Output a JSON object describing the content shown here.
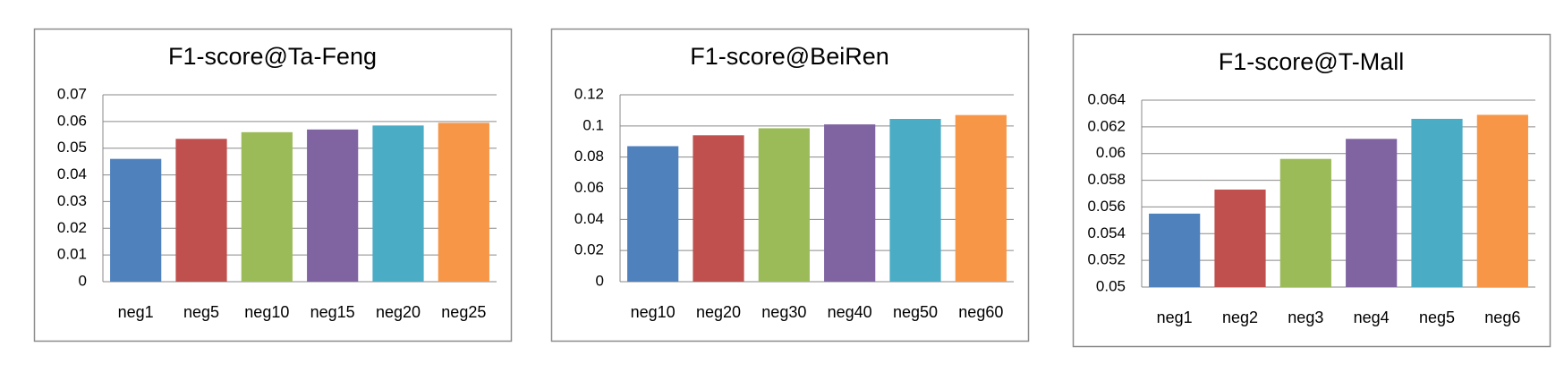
{
  "chart_data": [
    {
      "type": "bar",
      "title": "F1-score@Ta-Feng",
      "categories": [
        "neg1",
        "neg5",
        "neg10",
        "neg15",
        "neg20",
        "neg25"
      ],
      "values": [
        0.046,
        0.0535,
        0.056,
        0.057,
        0.0585,
        0.0595
      ],
      "colors": [
        "#4F81BD",
        "#C0504D",
        "#9BBB59",
        "#8064A2",
        "#4BACC6",
        "#F79646"
      ],
      "ylim": [
        0,
        0.07
      ],
      "yticks": [
        0,
        0.01,
        0.02,
        0.03,
        0.04,
        0.05,
        0.06,
        0.07
      ],
      "grid": true
    },
    {
      "type": "bar",
      "title": "F1-score@BeiRen",
      "categories": [
        "neg10",
        "neg20",
        "neg30",
        "neg40",
        "neg50",
        "neg60"
      ],
      "values": [
        0.087,
        0.094,
        0.0985,
        0.101,
        0.1045,
        0.107
      ],
      "colors": [
        "#4F81BD",
        "#C0504D",
        "#9BBB59",
        "#8064A2",
        "#4BACC6",
        "#F79646"
      ],
      "ylim": [
        0,
        0.12
      ],
      "yticks": [
        0,
        0.02,
        0.04,
        0.06,
        0.08,
        0.1,
        0.12
      ],
      "grid": true
    },
    {
      "type": "bar",
      "title": "F1-score@T-Mall",
      "categories": [
        "neg1",
        "neg2",
        "neg3",
        "neg4",
        "neg5",
        "neg6"
      ],
      "values": [
        0.0555,
        0.0573,
        0.0596,
        0.0611,
        0.0626,
        0.0629
      ],
      "colors": [
        "#4F81BD",
        "#C0504D",
        "#9BBB59",
        "#8064A2",
        "#4BACC6",
        "#F79646"
      ],
      "ylim": [
        0.05,
        0.064
      ],
      "yticks": [
        0.05,
        0.052,
        0.054,
        0.056,
        0.058,
        0.06,
        0.062,
        0.064
      ],
      "grid": true
    }
  ]
}
